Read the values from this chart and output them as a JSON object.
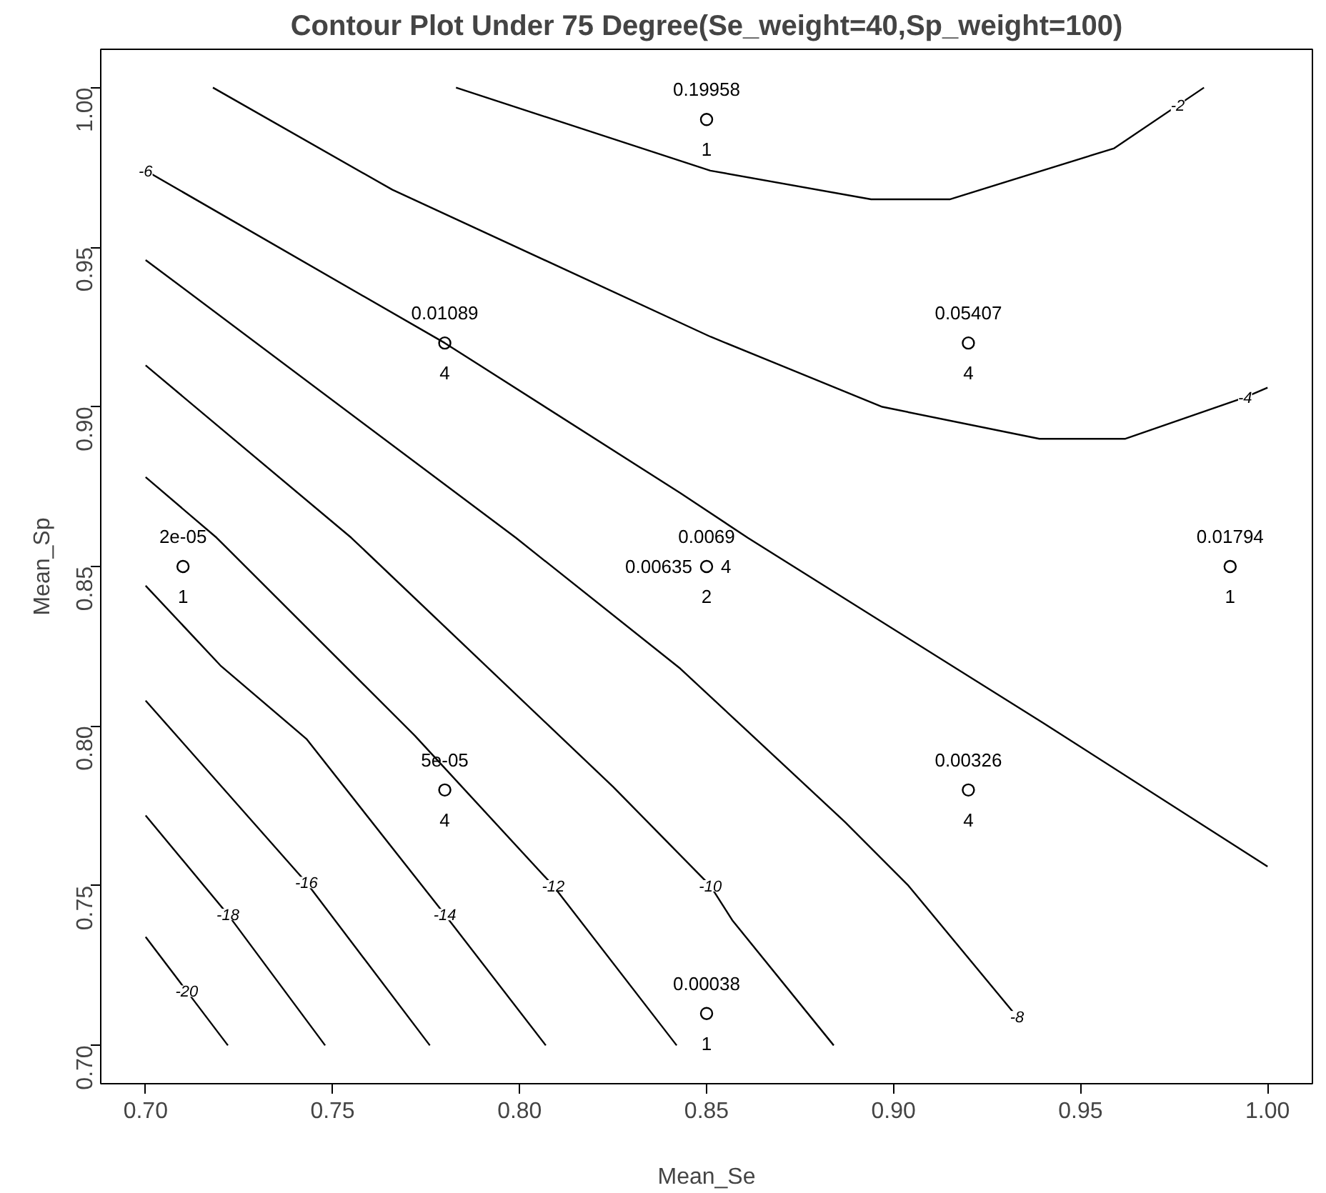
{
  "chart_data": {
    "type": "line",
    "title": "Contour Plot Under 75 Degree(Se_weight=40,Sp_weight=100)",
    "xlabel": "Mean_Se",
    "ylabel": "Mean_Sp",
    "xlim": [
      0.688,
      1.012
    ],
    "ylim": [
      0.688,
      1.012
    ],
    "xticks": [
      {
        "value": 0.7,
        "label": "0.70"
      },
      0.75,
      {
        "value": 0.8,
        "label": "0.80"
      },
      0.85,
      {
        "value": 0.9,
        "label": "0.90"
      },
      0.95,
      {
        "value": 1.0,
        "label": "1.00"
      }
    ],
    "yticks": [
      {
        "value": 0.7,
        "label": "0.70"
      },
      0.75,
      {
        "value": 0.8,
        "label": "0.80"
      },
      0.85,
      {
        "value": 0.9,
        "label": "0.90"
      },
      0.95,
      {
        "value": 1.0,
        "label": "1.00"
      }
    ],
    "grid": false,
    "line_style": "solid",
    "series": [
      {
        "color": "#000000",
        "x": [
          0.783,
          0.851,
          0.894,
          0.915,
          0.959,
          0.983
        ],
        "values": [
          1.0,
          0.974,
          0.965,
          0.965,
          0.981,
          1.0
        ]
      },
      {
        "color": "#000000",
        "x": [
          0.718,
          0.766,
          0.851,
          0.897,
          0.939,
          0.962,
          0.994,
          1.0
        ],
        "values": [
          1.0,
          0.968,
          0.922,
          0.9,
          0.89,
          0.89,
          0.903,
          0.906
        ]
      },
      {
        "color": "#000000",
        "x": [
          0.7,
          0.78,
          0.843,
          0.861,
          0.94,
          1.0
        ],
        "values": [
          0.974,
          0.92,
          0.873,
          0.859,
          0.801,
          0.756
        ]
      },
      {
        "color": "#000000",
        "x": [
          0.7,
          0.799,
          0.843,
          0.887,
          0.904,
          0.933
        ],
        "values": [
          0.946,
          0.859,
          0.818,
          0.77,
          0.75,
          0.709
        ]
      },
      {
        "color": "#000000",
        "x": [
          0.7,
          0.755,
          0.825,
          0.851,
          0.857,
          0.884
        ],
        "values": [
          0.913,
          0.859,
          0.781,
          0.75,
          0.739,
          0.7
        ]
      },
      {
        "color": "#000000",
        "x": [
          0.7,
          0.719,
          0.772,
          0.809,
          0.842
        ],
        "values": [
          0.878,
          0.859,
          0.797,
          0.75,
          0.7
        ]
      },
      {
        "color": "#000000",
        "x": [
          0.7,
          0.72,
          0.743,
          0.78,
          0.807
        ],
        "values": [
          0.844,
          0.819,
          0.796,
          0.741,
          0.7
        ]
      },
      {
        "color": "#000000",
        "x": [
          0.7,
          0.743,
          0.776
        ],
        "values": [
          0.808,
          0.751,
          0.7
        ]
      },
      {
        "color": "#000000",
        "x": [
          0.7,
          0.722,
          0.748
        ],
        "values": [
          0.772,
          0.741,
          0.7
        ]
      },
      {
        "color": "#000000",
        "x": [
          0.7,
          0.722
        ],
        "values": [
          0.734,
          0.7
        ]
      },
      {
        "type": "scatter",
        "color": "#000000",
        "marker": "circle",
        "x": [
          0.85,
          0.78,
          0.92,
          0.71,
          0.85,
          0.99,
          0.78,
          0.92,
          0.85
        ],
        "values": [
          0.99,
          0.92,
          0.92,
          0.85,
          0.85,
          0.85,
          0.78,
          0.78,
          0.71
        ]
      }
    ],
    "annotations": [
      {
        "text": "0.19958",
        "x": 0.85,
        "y": 0.99
      },
      {
        "text": "1",
        "x": 0.85,
        "y": 0.99
      },
      {
        "text": "0.01089",
        "x": 0.78,
        "y": 0.92
      },
      {
        "text": "4",
        "x": 0.78,
        "y": 0.92
      },
      {
        "text": "0.05407",
        "x": 0.92,
        "y": 0.92
      },
      {
        "text": "4",
        "x": 0.92,
        "y": 0.92
      },
      {
        "text": "2e-05",
        "x": 0.71,
        "y": 0.85
      },
      {
        "text": "1",
        "x": 0.71,
        "y": 0.85
      },
      {
        "text": "0.0069",
        "x": 0.85,
        "y": 0.85
      },
      {
        "text": "2",
        "x": 0.85,
        "y": 0.85
      },
      {
        "text": "0.00635",
        "x": 0.85,
        "y": 0.85
      },
      {
        "text": "4",
        "x": 0.85,
        "y": 0.85
      },
      {
        "text": "0.01794",
        "x": 0.99,
        "y": 0.85
      },
      {
        "text": "1",
        "x": 0.99,
        "y": 0.85
      },
      {
        "text": "5e-05",
        "x": 0.78,
        "y": 0.78
      },
      {
        "text": "4",
        "x": 0.78,
        "y": 0.78
      },
      {
        "text": "0.00326",
        "x": 0.92,
        "y": 0.78
      },
      {
        "text": "4",
        "x": 0.92,
        "y": 0.78
      },
      {
        "text": "0.00038",
        "x": 0.85,
        "y": 0.71
      },
      {
        "text": "1",
        "x": 0.85,
        "y": 0.71
      },
      {
        "text": "-2",
        "x": 0.976,
        "y": 0.9945
      },
      {
        "text": "-4",
        "x": 0.994,
        "y": 0.903
      },
      {
        "text": "-6",
        "x": 0.7,
        "y": 0.974
      },
      {
        "text": "-8",
        "x": 0.933,
        "y": 0.709
      },
      {
        "text": "-10",
        "x": 0.851,
        "y": 0.75
      },
      {
        "text": "-12",
        "x": 0.809,
        "y": 0.75
      },
      {
        "text": "-14",
        "x": 0.78,
        "y": 0.741
      },
      {
        "text": "-16",
        "x": 0.743,
        "y": 0.751
      },
      {
        "text": "-18",
        "x": 0.722,
        "y": 0.741
      },
      {
        "text": "-20",
        "x": 0.711,
        "y": 0.717
      }
    ]
  }
}
